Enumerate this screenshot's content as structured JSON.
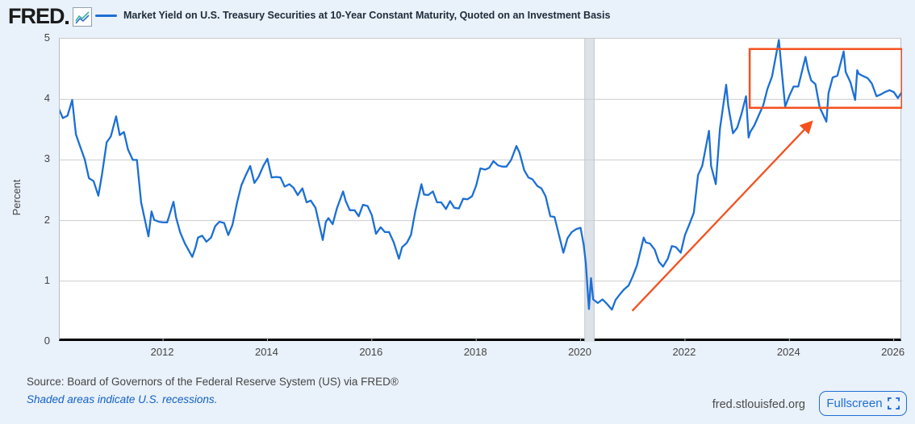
{
  "header": {
    "logo_text": "FRED",
    "logo_icon": "sparkline-chart-icon"
  },
  "chart_data": {
    "type": "line",
    "title": "Market Yield on U.S. Treasury Securities at 10-Year Constant Maturity, Quoted on an Investment Basis",
    "ylabel": "Percent",
    "ylim": [
      0,
      5
    ],
    "yticks": [
      0,
      1,
      2,
      3,
      4,
      5
    ],
    "xlim": [
      2010.02,
      2026.16
    ],
    "xticks": [
      2012,
      2014,
      2016,
      2018,
      2020,
      2022,
      2024,
      2026
    ],
    "grid": "horizontal",
    "legend_position": "top",
    "colors": {
      "line": "#1b6fd5",
      "annotation": "#f4511e",
      "grid": "#cccccc",
      "recession_band": "#dde2e8",
      "recession_band_edge": "#c2c9d1"
    },
    "recession_bands": [
      {
        "start": 2020.08,
        "end": 2020.26
      }
    ],
    "annotations": {
      "box": {
        "x0": 2023.24,
        "x1": 2026.16,
        "y0": 3.86,
        "y1": 4.83
      },
      "arrow": {
        "x0": 2020.99,
        "y0": 0.51,
        "x1": 2024.43,
        "y1": 3.63
      }
    },
    "series": [
      {
        "name": "Market Yield on U.S. Treasury Securities at 10-Year Constant Maturity, Quoted on an Investment Basis",
        "points": [
          [
            2010.0,
            3.85
          ],
          [
            2010.08,
            3.69
          ],
          [
            2010.17,
            3.73
          ],
          [
            2010.26,
            3.99
          ],
          [
            2010.33,
            3.42
          ],
          [
            2010.42,
            3.2
          ],
          [
            2010.5,
            3.01
          ],
          [
            2010.58,
            2.7
          ],
          [
            2010.67,
            2.65
          ],
          [
            2010.76,
            2.41
          ],
          [
            2010.83,
            2.76
          ],
          [
            2010.92,
            3.29
          ],
          [
            2011.0,
            3.39
          ],
          [
            2011.1,
            3.72
          ],
          [
            2011.17,
            3.41
          ],
          [
            2011.25,
            3.46
          ],
          [
            2011.33,
            3.17
          ],
          [
            2011.42,
            3.0
          ],
          [
            2011.5,
            3.0
          ],
          [
            2011.58,
            2.3
          ],
          [
            2011.72,
            1.74
          ],
          [
            2011.78,
            2.15
          ],
          [
            2011.83,
            2.01
          ],
          [
            2011.92,
            1.98
          ],
          [
            2012.0,
            1.97
          ],
          [
            2012.08,
            1.97
          ],
          [
            2012.2,
            2.31
          ],
          [
            2012.25,
            2.05
          ],
          [
            2012.33,
            1.8
          ],
          [
            2012.42,
            1.62
          ],
          [
            2012.56,
            1.4
          ],
          [
            2012.62,
            1.55
          ],
          [
            2012.67,
            1.72
          ],
          [
            2012.75,
            1.75
          ],
          [
            2012.83,
            1.65
          ],
          [
            2012.92,
            1.72
          ],
          [
            2013.0,
            1.91
          ],
          [
            2013.08,
            1.98
          ],
          [
            2013.17,
            1.96
          ],
          [
            2013.25,
            1.76
          ],
          [
            2013.33,
            1.93
          ],
          [
            2013.42,
            2.3
          ],
          [
            2013.5,
            2.58
          ],
          [
            2013.58,
            2.74
          ],
          [
            2013.67,
            2.9
          ],
          [
            2013.75,
            2.62
          ],
          [
            2013.83,
            2.72
          ],
          [
            2013.92,
            2.9
          ],
          [
            2014.0,
            3.02
          ],
          [
            2014.08,
            2.71
          ],
          [
            2014.17,
            2.72
          ],
          [
            2014.25,
            2.71
          ],
          [
            2014.33,
            2.56
          ],
          [
            2014.42,
            2.6
          ],
          [
            2014.5,
            2.54
          ],
          [
            2014.58,
            2.42
          ],
          [
            2014.67,
            2.53
          ],
          [
            2014.75,
            2.3
          ],
          [
            2014.83,
            2.33
          ],
          [
            2014.92,
            2.21
          ],
          [
            2015.06,
            1.68
          ],
          [
            2015.12,
            1.98
          ],
          [
            2015.17,
            2.04
          ],
          [
            2015.25,
            1.94
          ],
          [
            2015.33,
            2.2
          ],
          [
            2015.45,
            2.48
          ],
          [
            2015.5,
            2.32
          ],
          [
            2015.58,
            2.17
          ],
          [
            2015.67,
            2.17
          ],
          [
            2015.75,
            2.07
          ],
          [
            2015.83,
            2.26
          ],
          [
            2015.92,
            2.24
          ],
          [
            2016.0,
            2.09
          ],
          [
            2016.08,
            1.78
          ],
          [
            2016.17,
            1.89
          ],
          [
            2016.25,
            1.81
          ],
          [
            2016.33,
            1.81
          ],
          [
            2016.42,
            1.64
          ],
          [
            2016.52,
            1.37
          ],
          [
            2016.58,
            1.56
          ],
          [
            2016.67,
            1.63
          ],
          [
            2016.75,
            1.76
          ],
          [
            2016.83,
            2.14
          ],
          [
            2016.95,
            2.6
          ],
          [
            2017.0,
            2.43
          ],
          [
            2017.08,
            2.42
          ],
          [
            2017.17,
            2.48
          ],
          [
            2017.25,
            2.3
          ],
          [
            2017.33,
            2.3
          ],
          [
            2017.42,
            2.19
          ],
          [
            2017.5,
            2.32
          ],
          [
            2017.58,
            2.21
          ],
          [
            2017.67,
            2.2
          ],
          [
            2017.75,
            2.36
          ],
          [
            2017.83,
            2.35
          ],
          [
            2017.92,
            2.4
          ],
          [
            2018.0,
            2.58
          ],
          [
            2018.08,
            2.86
          ],
          [
            2018.17,
            2.84
          ],
          [
            2018.25,
            2.87
          ],
          [
            2018.33,
            2.98
          ],
          [
            2018.42,
            2.91
          ],
          [
            2018.5,
            2.89
          ],
          [
            2018.58,
            2.89
          ],
          [
            2018.67,
            3.0
          ],
          [
            2018.77,
            3.23
          ],
          [
            2018.83,
            3.12
          ],
          [
            2018.92,
            2.83
          ],
          [
            2019.0,
            2.71
          ],
          [
            2019.08,
            2.68
          ],
          [
            2019.17,
            2.57
          ],
          [
            2019.25,
            2.53
          ],
          [
            2019.33,
            2.4
          ],
          [
            2019.42,
            2.07
          ],
          [
            2019.5,
            2.06
          ],
          [
            2019.67,
            1.47
          ],
          [
            2019.75,
            1.71
          ],
          [
            2019.83,
            1.81
          ],
          [
            2019.92,
            1.86
          ],
          [
            2020.0,
            1.88
          ],
          [
            2020.06,
            1.6
          ],
          [
            2020.1,
            1.3
          ],
          [
            2020.16,
            0.54
          ],
          [
            2020.2,
            1.05
          ],
          [
            2020.24,
            0.7
          ],
          [
            2020.33,
            0.64
          ],
          [
            2020.42,
            0.7
          ],
          [
            2020.5,
            0.63
          ],
          [
            2020.6,
            0.53
          ],
          [
            2020.67,
            0.69
          ],
          [
            2020.75,
            0.78
          ],
          [
            2020.83,
            0.86
          ],
          [
            2020.92,
            0.93
          ],
          [
            2021.0,
            1.08
          ],
          [
            2021.08,
            1.26
          ],
          [
            2021.21,
            1.72
          ],
          [
            2021.25,
            1.64
          ],
          [
            2021.33,
            1.62
          ],
          [
            2021.42,
            1.52
          ],
          [
            2021.5,
            1.32
          ],
          [
            2021.58,
            1.24
          ],
          [
            2021.67,
            1.37
          ],
          [
            2021.75,
            1.58
          ],
          [
            2021.83,
            1.56
          ],
          [
            2021.92,
            1.47
          ],
          [
            2022.0,
            1.76
          ],
          [
            2022.08,
            1.93
          ],
          [
            2022.17,
            2.13
          ],
          [
            2022.25,
            2.75
          ],
          [
            2022.33,
            2.9
          ],
          [
            2022.46,
            3.48
          ],
          [
            2022.5,
            2.9
          ],
          [
            2022.59,
            2.6
          ],
          [
            2022.67,
            3.52
          ],
          [
            2022.79,
            4.24
          ],
          [
            2022.83,
            3.89
          ],
          [
            2022.92,
            3.44
          ],
          [
            2023.0,
            3.53
          ],
          [
            2023.08,
            3.75
          ],
          [
            2023.17,
            4.05
          ],
          [
            2023.22,
            3.37
          ],
          [
            2023.25,
            3.46
          ],
          [
            2023.33,
            3.57
          ],
          [
            2023.42,
            3.75
          ],
          [
            2023.5,
            3.9
          ],
          [
            2023.58,
            4.17
          ],
          [
            2023.67,
            4.38
          ],
          [
            2023.8,
            4.98
          ],
          [
            2023.85,
            4.5
          ],
          [
            2023.92,
            3.88
          ],
          [
            2024.0,
            4.06
          ],
          [
            2024.08,
            4.21
          ],
          [
            2024.17,
            4.21
          ],
          [
            2024.31,
            4.7
          ],
          [
            2024.36,
            4.48
          ],
          [
            2024.42,
            4.31
          ],
          [
            2024.5,
            4.25
          ],
          [
            2024.58,
            3.87
          ],
          [
            2024.71,
            3.63
          ],
          [
            2024.75,
            4.1
          ],
          [
            2024.83,
            4.36
          ],
          [
            2024.92,
            4.39
          ],
          [
            2025.04,
            4.79
          ],
          [
            2025.08,
            4.45
          ],
          [
            2025.17,
            4.28
          ],
          [
            2025.26,
            3.99
          ],
          [
            2025.3,
            4.48
          ],
          [
            2025.33,
            4.42
          ],
          [
            2025.42,
            4.38
          ],
          [
            2025.5,
            4.35
          ],
          [
            2025.58,
            4.26
          ],
          [
            2025.67,
            4.05
          ],
          [
            2025.75,
            4.08
          ],
          [
            2025.83,
            4.12
          ],
          [
            2025.92,
            4.15
          ],
          [
            2026.0,
            4.12
          ],
          [
            2026.08,
            4.02
          ],
          [
            2026.14,
            4.1
          ]
        ]
      }
    ]
  },
  "footer": {
    "source_line": "Source: Board of Governors of the Federal Reserve System (US) via FRED®",
    "recession_note": "Shaded areas indicate U.S. recessions.",
    "site_url": "fred.stlouisfed.org",
    "fullscreen_label": "Fullscreen"
  }
}
